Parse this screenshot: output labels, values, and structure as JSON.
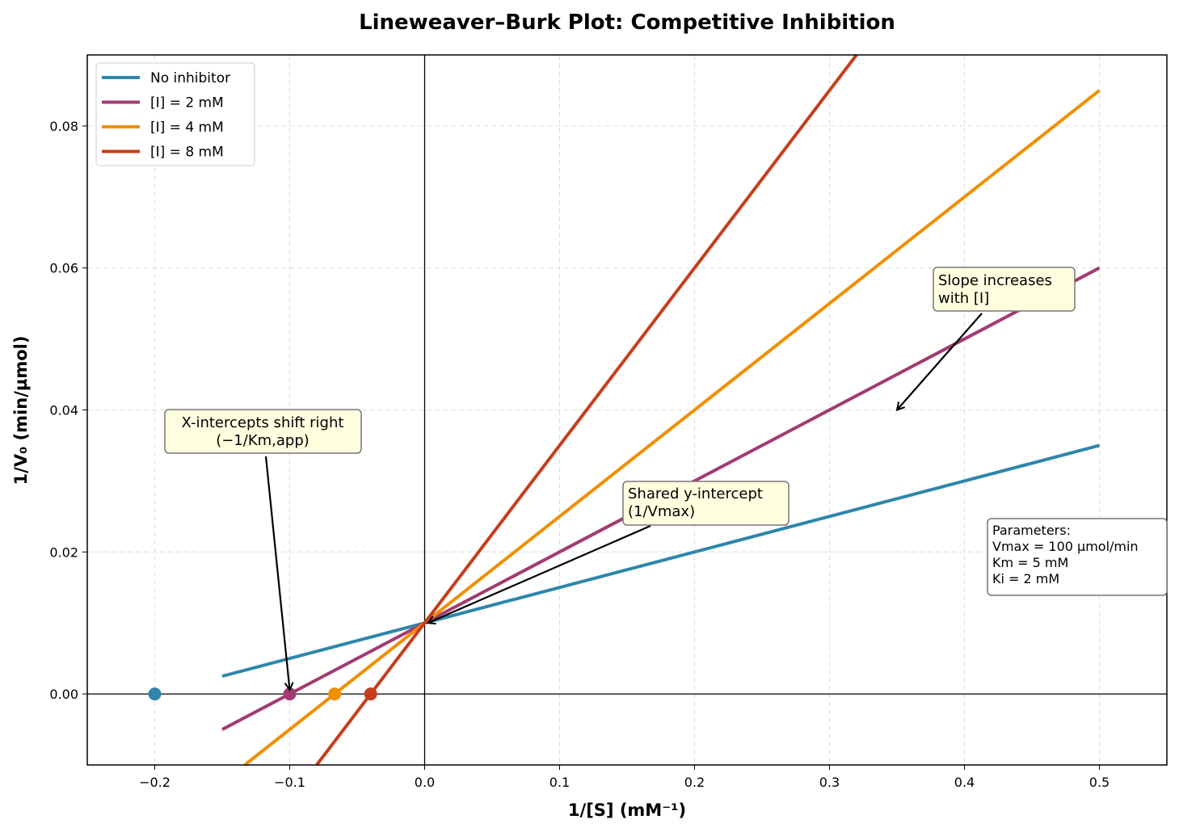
{
  "chart_data": {
    "type": "line",
    "title": "Lineweaver–Burk Plot: Competitive Inhibition",
    "xlabel": "1/[S]  (mM⁻¹)",
    "ylabel": "1/V₀  (min/µmol)",
    "xlim": [
      -0.25,
      0.55
    ],
    "ylim": [
      -0.01,
      0.09
    ],
    "xticks": [
      -0.2,
      -0.1,
      0.0,
      0.1,
      0.2,
      0.3,
      0.4,
      0.5
    ],
    "xtick_labels": [
      "−0.2",
      "−0.1",
      "0.0",
      "0.1",
      "0.2",
      "0.3",
      "0.4",
      "0.5"
    ],
    "yticks": [
      0.0,
      0.02,
      0.04,
      0.06,
      0.08
    ],
    "ytick_labels": [
      "0.00",
      "0.02",
      "0.04",
      "0.06",
      "0.08"
    ],
    "grid": true,
    "legend_position": "top-left",
    "series": [
      {
        "name": "No inhibitor",
        "color": "#2E86AB",
        "x": [
          -0.15,
          0.5
        ],
        "y": [
          0.0025,
          0.035
        ],
        "x_intercept": -0.2
      },
      {
        "name": "[I] = 2 mM",
        "color": "#A23B72",
        "x": [
          -0.15,
          0.5
        ],
        "y": [
          -0.005,
          0.06
        ],
        "x_intercept": -0.1
      },
      {
        "name": "[I] = 4 mM",
        "color": "#F18F01",
        "x": [
          -0.15,
          0.5
        ],
        "y": [
          -0.0125,
          0.085
        ],
        "x_intercept": -0.0667
      },
      {
        "name": "[I] = 8 mM",
        "color": "#C73E1D",
        "x": [
          -0.15,
          0.5
        ],
        "y": [
          -0.0275,
          0.135
        ],
        "x_intercept": -0.04
      }
    ],
    "annotations": [
      {
        "lines": [
          "X-intercepts shift right",
          "(−1/Km,app)"
        ],
        "target": [
          -0.1,
          0.0
        ]
      },
      {
        "lines": [
          "Shared y-intercept",
          "(1/Vmax)"
        ],
        "target": [
          0.0,
          0.01
        ]
      },
      {
        "lines": [
          "Slope increases",
          "with [I]"
        ],
        "target": [
          0.35,
          0.04
        ]
      }
    ],
    "parameters_box": [
      "Parameters:",
      "Vmax = 100 µmol/min",
      "Km = 5 mM",
      "Ki = 2 mM"
    ]
  }
}
